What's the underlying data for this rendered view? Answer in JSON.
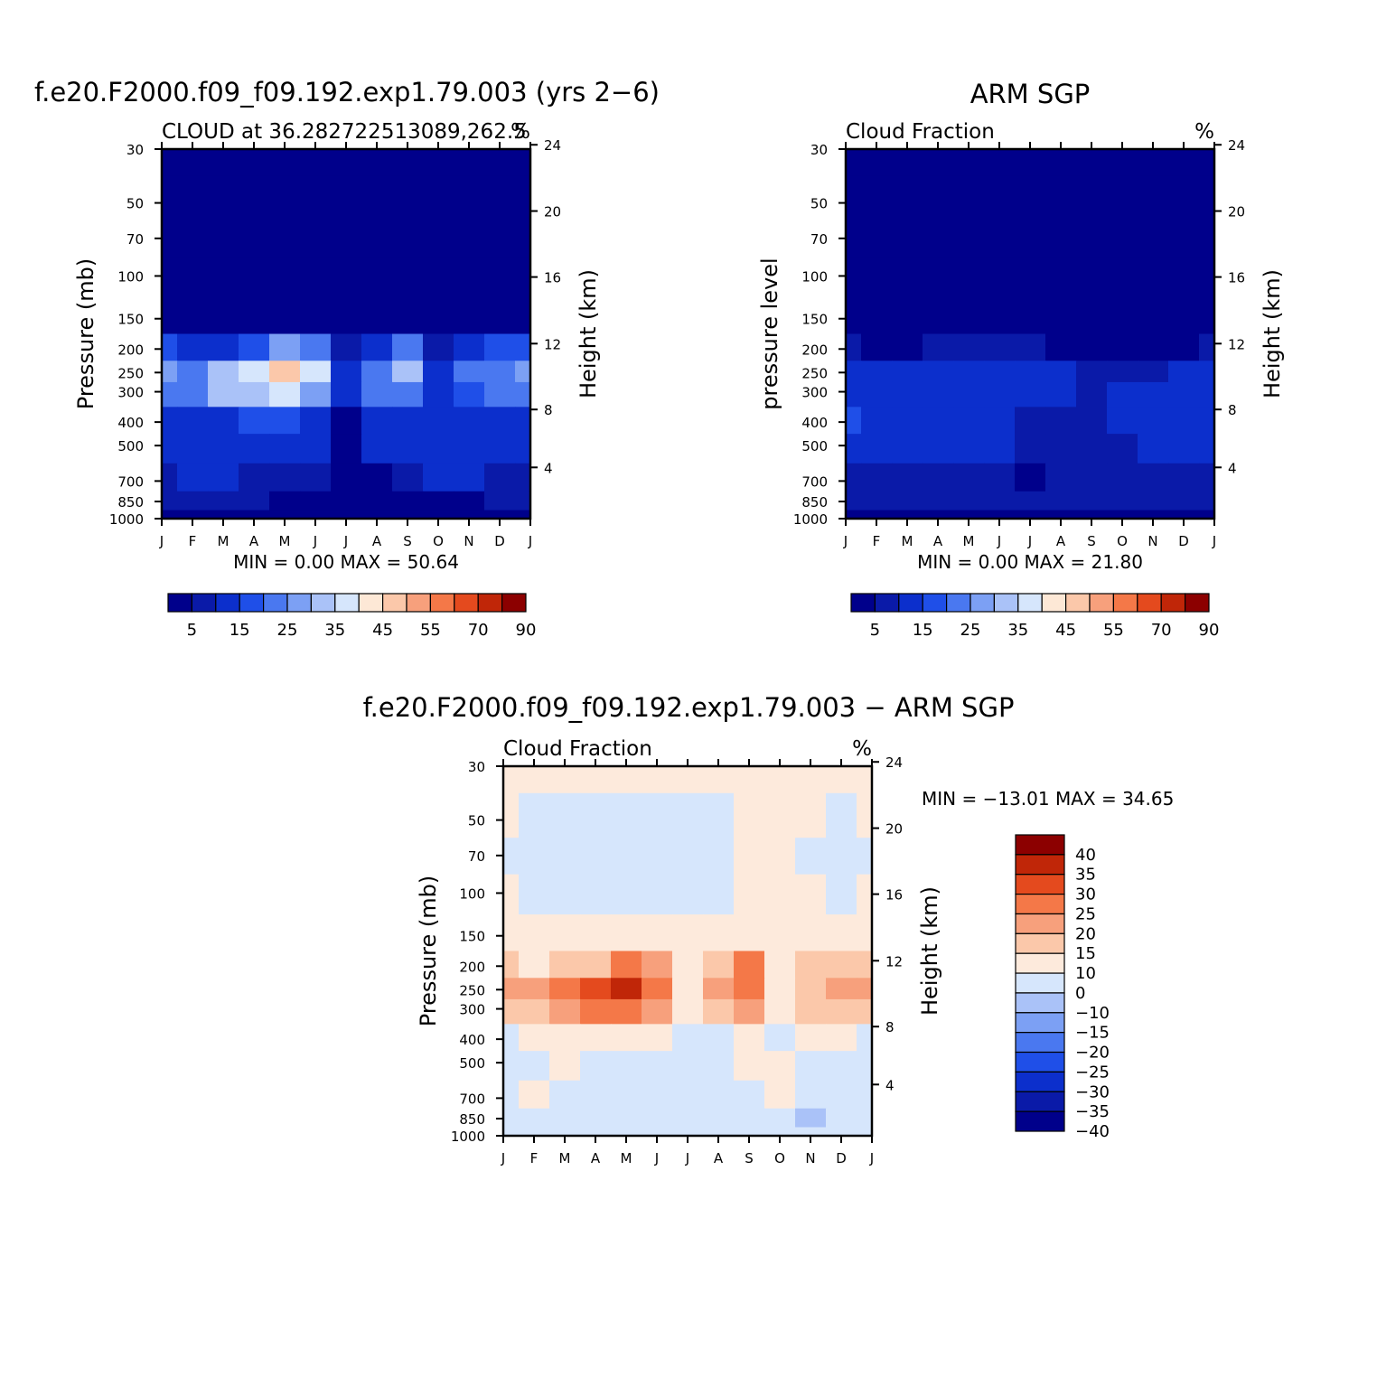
{
  "months": [
    "J",
    "F",
    "M",
    "A",
    "M",
    "J",
    "J",
    "A",
    "S",
    "O",
    "N",
    "D",
    "J"
  ],
  "pressure_ticks": [
    "30",
    "50",
    "70",
    "100",
    "150",
    "200",
    "250",
    "300",
    "400",
    "500",
    "700",
    "850",
    "1000"
  ],
  "colors": {
    "abs": [
      "#00008b",
      "#0a1aa8",
      "#0c2fcc",
      "#1f4fe8",
      "#4a78f0",
      "#7ca0f4",
      "#aac2f8",
      "#d6e6fc",
      "#fde8d6",
      "#fbc8aa",
      "#f7a07c",
      "#f47848",
      "#e44a1e",
      "#c02608",
      "#8c0000"
    ],
    "diff": [
      "#00008b",
      "#0a1aa8",
      "#0c2fcc",
      "#1f4fe8",
      "#4a78f0",
      "#7ca0f4",
      "#aac2f8",
      "#d6e6fc",
      "#fdeadc",
      "#fbc8aa",
      "#f7a07c",
      "#f47848",
      "#e44a1e",
      "#c02608",
      "#8c0000"
    ]
  },
  "panels": {
    "model": {
      "title": "f.e20.F2000.f09_f09.192.exp1.79.003 (yrs 2−6)",
      "subtitle_left": "CLOUD at 36.282722513089,262.5",
      "subtitle_right": "%",
      "ylabel_left": "Pressure (mb)",
      "ylabel_right": "Height (km)",
      "height_ticks": [
        "24",
        "20",
        "16",
        "12",
        "8",
        "4"
      ],
      "minmax": "MIN =    0.00  MAX =   50.64",
      "colorbar_labels": [
        "5",
        "15",
        "25",
        "35",
        "45",
        "55",
        "70",
        "90"
      ]
    },
    "obs": {
      "title": "ARM SGP",
      "subtitle_left": "Cloud Fraction",
      "subtitle_right": "%",
      "ylabel_left": "pressure level",
      "ylabel_right": "Height (km)",
      "height_ticks": [
        "24",
        "20",
        "16",
        "12",
        "8",
        "4"
      ],
      "minmax": "MIN =    0.00  MAX =   21.80",
      "colorbar_labels": [
        "5",
        "15",
        "25",
        "35",
        "45",
        "55",
        "70",
        "90"
      ]
    },
    "diff": {
      "title": "f.e20.F2000.f09_f09.192.exp1.79.003 − ARM SGP",
      "subtitle_left": "Cloud Fraction",
      "subtitle_right": "%",
      "ylabel_left": "Pressure (mb)",
      "ylabel_right": "Height (km)",
      "height_ticks": [
        "24",
        "20",
        "16",
        "12",
        "8",
        "4"
      ],
      "minmax": "MIN = −13.01  MAX =   34.65",
      "colorbar_labels": [
        "40",
        "35",
        "30",
        "25",
        "20",
        "15",
        "10",
        "0",
        "−10",
        "−15",
        "−20",
        "−25",
        "−30",
        "−35",
        "−40"
      ]
    }
  },
  "chart_data": [
    {
      "type": "heatmap",
      "title": "f.e20.F2000.f09_f09.192.exp1.79.003 (yrs 2−6)",
      "subtitle": "CLOUD at 36.282722513089,262.5",
      "xlabel": "",
      "ylabel": "Pressure (mb)",
      "ylabel_right": "Height (km)",
      "units": "%",
      "x": [
        "J",
        "F",
        "M",
        "A",
        "M",
        "J",
        "J",
        "A",
        "S",
        "O",
        "N",
        "D",
        "J"
      ],
      "y": [
        30,
        50,
        70,
        100,
        150,
        200,
        250,
        300,
        400,
        500,
        700,
        850,
        1000
      ],
      "y_scale": "log",
      "levels": [
        5,
        10,
        15,
        20,
        25,
        30,
        35,
        40,
        45,
        50,
        55,
        60,
        70,
        80,
        90
      ],
      "min": 0.0,
      "max": 50.64,
      "z": [
        [
          0,
          0,
          0,
          0,
          0,
          0,
          0,
          0,
          0,
          0,
          0,
          0,
          0
        ],
        [
          0,
          0,
          0,
          0,
          0,
          0,
          0,
          0,
          0,
          0,
          0,
          0,
          0
        ],
        [
          0,
          0,
          0,
          0,
          0,
          0,
          0,
          0,
          0,
          0,
          0,
          0,
          0
        ],
        [
          0,
          0,
          0,
          0,
          0,
          0,
          0,
          0,
          0,
          0,
          0,
          0,
          0
        ],
        [
          4,
          2,
          2,
          3,
          3,
          4,
          3,
          2,
          2,
          2,
          3,
          3,
          4
        ],
        [
          18,
          10,
          14,
          18,
          28,
          22,
          8,
          14,
          20,
          8,
          12,
          16,
          18
        ],
        [
          26,
          24,
          32,
          38,
          48,
          36,
          14,
          24,
          30,
          14,
          20,
          24,
          26
        ],
        [
          22,
          22,
          30,
          34,
          36,
          26,
          10,
          20,
          24,
          12,
          18,
          22,
          22
        ],
        [
          12,
          12,
          14,
          16,
          18,
          14,
          4,
          12,
          12,
          10,
          12,
          12,
          12
        ],
        [
          10,
          10,
          14,
          12,
          10,
          10,
          2,
          10,
          10,
          10,
          10,
          10,
          10
        ],
        [
          8,
          10,
          10,
          8,
          6,
          5,
          1,
          3,
          6,
          10,
          10,
          8,
          8
        ],
        [
          5,
          6,
          6,
          5,
          4,
          2,
          1,
          2,
          3,
          4,
          3,
          5,
          5
        ],
        [
          2,
          2,
          2,
          2,
          2,
          1,
          0,
          1,
          1,
          2,
          2,
          2,
          2
        ]
      ]
    },
    {
      "type": "heatmap",
      "title": "ARM SGP",
      "subtitle": "Cloud Fraction",
      "xlabel": "",
      "ylabel": "pressure level",
      "ylabel_right": "Height (km)",
      "units": "%",
      "x": [
        "J",
        "F",
        "M",
        "A",
        "M",
        "J",
        "J",
        "A",
        "S",
        "O",
        "N",
        "D",
        "J"
      ],
      "y": [
        30,
        50,
        70,
        100,
        150,
        200,
        250,
        300,
        400,
        500,
        700,
        850,
        1000
      ],
      "y_scale": "log",
      "levels": [
        5,
        10,
        15,
        20,
        25,
        30,
        35,
        40,
        45,
        50,
        55,
        60,
        70,
        80,
        90
      ],
      "min": 0.0,
      "max": 21.8,
      "z": [
        [
          0,
          0,
          0,
          0,
          0,
          0,
          0,
          0,
          0,
          0,
          0,
          0,
          0
        ],
        [
          0,
          0,
          0,
          0,
          0,
          0,
          0,
          0,
          0,
          0,
          0,
          0,
          0
        ],
        [
          0,
          0,
          0,
          0,
          0,
          0,
          0,
          0,
          0,
          0,
          0,
          0,
          0
        ],
        [
          0,
          0,
          0,
          0,
          0,
          0,
          0,
          0,
          0,
          0,
          0,
          0,
          0
        ],
        [
          0,
          0,
          0,
          0,
          0,
          0,
          0,
          0,
          0,
          0,
          0,
          0,
          0
        ],
        [
          6,
          3,
          4,
          6,
          6,
          6,
          6,
          4,
          3,
          3,
          4,
          4,
          5
        ],
        [
          12,
          10,
          12,
          14,
          14,
          14,
          12,
          10,
          8,
          8,
          8,
          10,
          12
        ],
        [
          14,
          12,
          13,
          14,
          14,
          14,
          12,
          10,
          8,
          10,
          10,
          12,
          14
        ],
        [
          16,
          13,
          13,
          13,
          13,
          13,
          8,
          7,
          6,
          10,
          10,
          12,
          13
        ],
        [
          13,
          12,
          12,
          12,
          12,
          11,
          6,
          6,
          6,
          8,
          10,
          11,
          12
        ],
        [
          8,
          9,
          9,
          8,
          6,
          6,
          3,
          5,
          6,
          6,
          7,
          7,
          8
        ],
        [
          7,
          8,
          8,
          7,
          6,
          6,
          5,
          5,
          6,
          7,
          8,
          7,
          7
        ],
        [
          3,
          3,
          3,
          3,
          3,
          3,
          3,
          3,
          3,
          3,
          3,
          3,
          3
        ]
      ]
    },
    {
      "type": "heatmap",
      "title": "f.e20.F2000.f09_f09.192.exp1.79.003 − ARM SGP",
      "subtitle": "Cloud Fraction",
      "xlabel": "",
      "ylabel": "Pressure (mb)",
      "ylabel_right": "Height (km)",
      "units": "%",
      "x": [
        "J",
        "F",
        "M",
        "A",
        "M",
        "J",
        "J",
        "A",
        "S",
        "O",
        "N",
        "D",
        "J"
      ],
      "y": [
        30,
        50,
        70,
        100,
        150,
        200,
        250,
        300,
        400,
        500,
        700,
        850,
        1000
      ],
      "y_scale": "log",
      "levels": [
        -40,
        -35,
        -30,
        -25,
        -20,
        -15,
        -10,
        0,
        10,
        15,
        20,
        25,
        30,
        35,
        40
      ],
      "min": -13.01,
      "max": 34.65,
      "z": [
        [
          2,
          2,
          2,
          2,
          2,
          2,
          2,
          2,
          2,
          2,
          2,
          2,
          2
        ],
        [
          2,
          -2,
          -2,
          -2,
          -2,
          -2,
          -2,
          -2,
          2,
          2,
          2,
          -2,
          2
        ],
        [
          -2,
          -2,
          -2,
          -2,
          -2,
          -2,
          -2,
          -2,
          2,
          2,
          -2,
          -2,
          -2
        ],
        [
          3,
          -2,
          -2,
          -2,
          -2,
          -2,
          -2,
          -2,
          2,
          2,
          2,
          -2,
          3
        ],
        [
          3,
          3,
          3,
          3,
          4,
          4,
          3,
          3,
          4,
          3,
          3,
          4,
          3
        ],
        [
          14,
          8,
          12,
          14,
          24,
          18,
          6,
          12,
          20,
          6,
          10,
          14,
          14
        ],
        [
          18,
          16,
          22,
          26,
          32,
          24,
          6,
          16,
          24,
          6,
          14,
          16,
          18
        ],
        [
          10,
          12,
          18,
          22,
          24,
          16,
          4,
          12,
          16,
          4,
          10,
          12,
          10
        ],
        [
          -2,
          2,
          3,
          4,
          4,
          2,
          -2,
          -2,
          2,
          -2,
          2,
          2,
          -2
        ],
        [
          -2,
          -2,
          2,
          -2,
          -2,
          -2,
          -2,
          -2,
          2,
          2,
          -2,
          -2,
          -2
        ],
        [
          -2,
          2,
          -2,
          -2,
          -2,
          -2,
          -2,
          -2,
          -2,
          2,
          -2,
          -2,
          -2
        ],
        [
          -2,
          -2,
          -2,
          -2,
          -2,
          -2,
          -2,
          -2,
          -2,
          -2,
          -12,
          -2,
          -2
        ],
        [
          -2,
          -2,
          -2,
          -2,
          -2,
          -2,
          -2,
          -2,
          -2,
          -2,
          -2,
          -2,
          -2
        ]
      ]
    }
  ]
}
